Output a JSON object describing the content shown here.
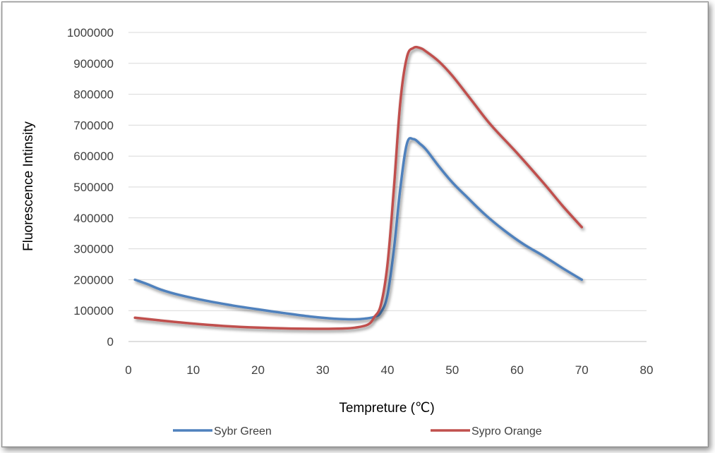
{
  "chart_data": {
    "type": "line",
    "title": "",
    "xlabel": "Tempreture (℃)",
    "ylabel": "Fluorescence Intinsity",
    "xlim": [
      0,
      80
    ],
    "ylim": [
      0,
      1000000
    ],
    "x_ticks": [
      "0",
      "10",
      "20",
      "30",
      "40",
      "50",
      "60",
      "70",
      "80"
    ],
    "y_ticks": [
      "0",
      "100000",
      "200000",
      "300000",
      "400000",
      "500000",
      "600000",
      "700000",
      "800000",
      "900000",
      "1000000"
    ],
    "grid": "horizontal",
    "legend_position": "bottom",
    "series": [
      {
        "name": "Sybr Green",
        "color": "#4f81bd",
        "points": [
          [
            1,
            200000
          ],
          [
            3,
            185000
          ],
          [
            5,
            168000
          ],
          [
            8,
            150000
          ],
          [
            12,
            132000
          ],
          [
            16,
            117000
          ],
          [
            20,
            104000
          ],
          [
            24,
            92000
          ],
          [
            28,
            81000
          ],
          [
            31,
            75000
          ],
          [
            34,
            72000
          ],
          [
            36,
            73000
          ],
          [
            38,
            80000
          ],
          [
            39,
            95000
          ],
          [
            40,
            150000
          ],
          [
            41,
            300000
          ],
          [
            42,
            500000
          ],
          [
            43,
            640000
          ],
          [
            44,
            655000
          ],
          [
            45,
            640000
          ],
          [
            46,
            620000
          ],
          [
            48,
            565000
          ],
          [
            50,
            515000
          ],
          [
            52,
            473000
          ],
          [
            55,
            412000
          ],
          [
            58,
            360000
          ],
          [
            61,
            315000
          ],
          [
            64,
            278000
          ],
          [
            67,
            238000
          ],
          [
            70,
            200000
          ]
        ]
      },
      {
        "name": "Sypro Orange",
        "color": "#c0504d",
        "points": [
          [
            1,
            77000
          ],
          [
            5,
            68000
          ],
          [
            10,
            58000
          ],
          [
            15,
            50000
          ],
          [
            20,
            45000
          ],
          [
            25,
            42000
          ],
          [
            30,
            41000
          ],
          [
            33,
            42000
          ],
          [
            35,
            45000
          ],
          [
            37,
            55000
          ],
          [
            38,
            80000
          ],
          [
            39,
            120000
          ],
          [
            40,
            250000
          ],
          [
            41,
            500000
          ],
          [
            42,
            780000
          ],
          [
            43,
            920000
          ],
          [
            44,
            950000
          ],
          [
            45,
            950000
          ],
          [
            46,
            938000
          ],
          [
            48,
            905000
          ],
          [
            50,
            860000
          ],
          [
            53,
            780000
          ],
          [
            56,
            700000
          ],
          [
            60,
            610000
          ],
          [
            64,
            515000
          ],
          [
            67,
            440000
          ],
          [
            70,
            370000
          ]
        ]
      }
    ]
  }
}
